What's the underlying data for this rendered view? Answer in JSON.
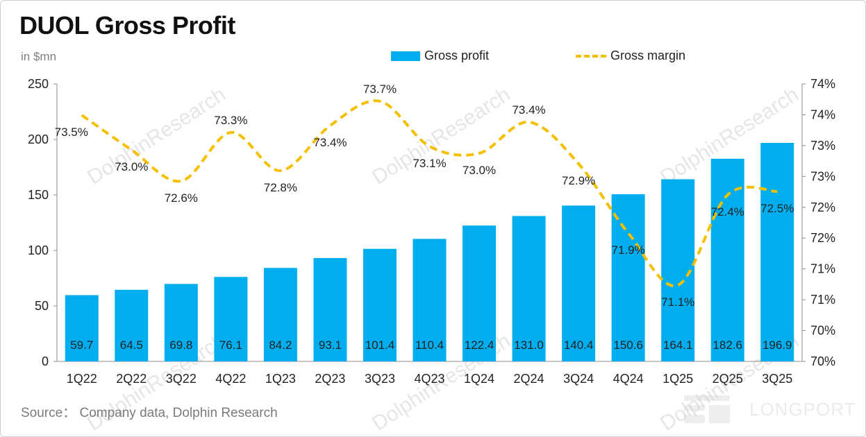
{
  "title": "DUOL Gross Profit",
  "unit_label": "in $mn",
  "source": "Source： Company data, Dolphin Research",
  "watermark": "DolphinResearch",
  "logo_text": "LONGPORT",
  "colors": {
    "bar": "#00AEEF",
    "line": "#F5C000"
  },
  "legend": {
    "bar_label": "Gross profit",
    "line_label": "Gross margin"
  },
  "chart_data": {
    "type": "bar",
    "categories": [
      "1Q22",
      "2Q22",
      "3Q22",
      "4Q22",
      "1Q23",
      "2Q23",
      "3Q23",
      "4Q23",
      "1Q24",
      "2Q24",
      "3Q24",
      "4Q24",
      "1Q25",
      "2Q25",
      "3Q25"
    ],
    "series": [
      {
        "name": "Gross profit",
        "type": "bar",
        "axis": "left",
        "values": [
          59.7,
          64.5,
          69.8,
          76.1,
          84.2,
          93.1,
          101.4,
          110.4,
          122.4,
          131.0,
          140.4,
          150.6,
          164.1,
          182.6,
          196.9
        ],
        "labels": [
          "59.7",
          "64.5",
          "69.8",
          "76.1",
          "84.2",
          "93.1",
          "101.4",
          "110.4",
          "122.4",
          "131.0",
          "140.4",
          "150.6",
          "164.1",
          "182.6",
          "196.9"
        ]
      },
      {
        "name": "Gross margin",
        "type": "line",
        "style": "dashed",
        "axis": "right",
        "values": [
          73.55,
          73.05,
          72.6,
          73.3,
          72.75,
          73.4,
          73.75,
          73.1,
          73.0,
          73.45,
          72.85,
          71.85,
          71.1,
          72.4,
          72.45
        ],
        "labels": [
          "73.5%",
          "73.0%",
          "72.6%",
          "73.3%",
          "72.8%",
          "73.4%",
          "73.7%",
          "73.1%",
          "73.0%",
          "73.4%",
          "72.9%",
          "71.9%",
          "71.1%",
          "72.4%",
          "72.5%"
        ]
      }
    ],
    "y_left": {
      "ylim": [
        0,
        250
      ],
      "ticks": [
        "0",
        "50",
        "100",
        "150",
        "200",
        "250"
      ]
    },
    "y_right": {
      "ylim": [
        70,
        74
      ],
      "ticks": [
        "70%",
        "70%",
        "71%",
        "71%",
        "72%",
        "72%",
        "73%",
        "73%",
        "74%",
        "74%"
      ]
    },
    "legend_position": "top-center",
    "grid": false
  }
}
